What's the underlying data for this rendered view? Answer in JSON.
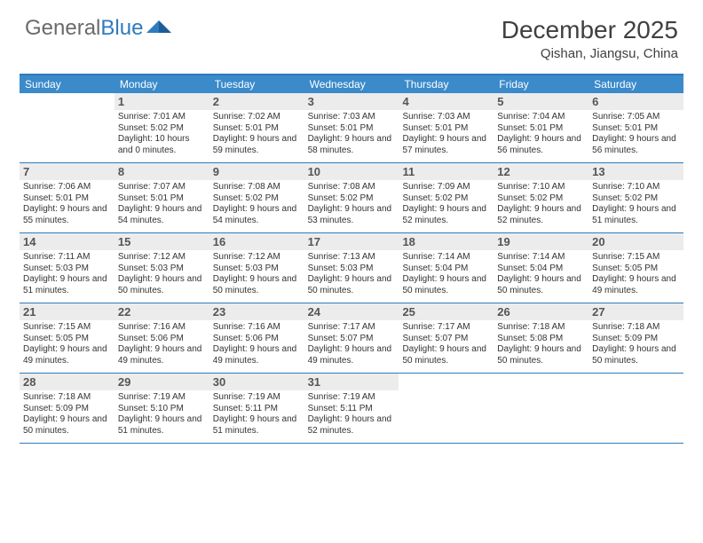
{
  "logo": {
    "text1": "General",
    "text2": "Blue"
  },
  "title": "December 2025",
  "location": "Qishan, Jiangsu, China",
  "colors": {
    "header_bg": "#3b8aca",
    "border": "#2f7bbf",
    "daynum_bg": "#ececec",
    "text": "#333333",
    "title_text": "#404040"
  },
  "day_names": [
    "Sunday",
    "Monday",
    "Tuesday",
    "Wednesday",
    "Thursday",
    "Friday",
    "Saturday"
  ],
  "weeks": [
    [
      {
        "day": "",
        "sunrise": "",
        "sunset": "",
        "daylight": ""
      },
      {
        "day": "1",
        "sunrise": "Sunrise: 7:01 AM",
        "sunset": "Sunset: 5:02 PM",
        "daylight": "Daylight: 10 hours and 0 minutes."
      },
      {
        "day": "2",
        "sunrise": "Sunrise: 7:02 AM",
        "sunset": "Sunset: 5:01 PM",
        "daylight": "Daylight: 9 hours and 59 minutes."
      },
      {
        "day": "3",
        "sunrise": "Sunrise: 7:03 AM",
        "sunset": "Sunset: 5:01 PM",
        "daylight": "Daylight: 9 hours and 58 minutes."
      },
      {
        "day": "4",
        "sunrise": "Sunrise: 7:03 AM",
        "sunset": "Sunset: 5:01 PM",
        "daylight": "Daylight: 9 hours and 57 minutes."
      },
      {
        "day": "5",
        "sunrise": "Sunrise: 7:04 AM",
        "sunset": "Sunset: 5:01 PM",
        "daylight": "Daylight: 9 hours and 56 minutes."
      },
      {
        "day": "6",
        "sunrise": "Sunrise: 7:05 AM",
        "sunset": "Sunset: 5:01 PM",
        "daylight": "Daylight: 9 hours and 56 minutes."
      }
    ],
    [
      {
        "day": "7",
        "sunrise": "Sunrise: 7:06 AM",
        "sunset": "Sunset: 5:01 PM",
        "daylight": "Daylight: 9 hours and 55 minutes."
      },
      {
        "day": "8",
        "sunrise": "Sunrise: 7:07 AM",
        "sunset": "Sunset: 5:01 PM",
        "daylight": "Daylight: 9 hours and 54 minutes."
      },
      {
        "day": "9",
        "sunrise": "Sunrise: 7:08 AM",
        "sunset": "Sunset: 5:02 PM",
        "daylight": "Daylight: 9 hours and 54 minutes."
      },
      {
        "day": "10",
        "sunrise": "Sunrise: 7:08 AM",
        "sunset": "Sunset: 5:02 PM",
        "daylight": "Daylight: 9 hours and 53 minutes."
      },
      {
        "day": "11",
        "sunrise": "Sunrise: 7:09 AM",
        "sunset": "Sunset: 5:02 PM",
        "daylight": "Daylight: 9 hours and 52 minutes."
      },
      {
        "day": "12",
        "sunrise": "Sunrise: 7:10 AM",
        "sunset": "Sunset: 5:02 PM",
        "daylight": "Daylight: 9 hours and 52 minutes."
      },
      {
        "day": "13",
        "sunrise": "Sunrise: 7:10 AM",
        "sunset": "Sunset: 5:02 PM",
        "daylight": "Daylight: 9 hours and 51 minutes."
      }
    ],
    [
      {
        "day": "14",
        "sunrise": "Sunrise: 7:11 AM",
        "sunset": "Sunset: 5:03 PM",
        "daylight": "Daylight: 9 hours and 51 minutes."
      },
      {
        "day": "15",
        "sunrise": "Sunrise: 7:12 AM",
        "sunset": "Sunset: 5:03 PM",
        "daylight": "Daylight: 9 hours and 50 minutes."
      },
      {
        "day": "16",
        "sunrise": "Sunrise: 7:12 AM",
        "sunset": "Sunset: 5:03 PM",
        "daylight": "Daylight: 9 hours and 50 minutes."
      },
      {
        "day": "17",
        "sunrise": "Sunrise: 7:13 AM",
        "sunset": "Sunset: 5:03 PM",
        "daylight": "Daylight: 9 hours and 50 minutes."
      },
      {
        "day": "18",
        "sunrise": "Sunrise: 7:14 AM",
        "sunset": "Sunset: 5:04 PM",
        "daylight": "Daylight: 9 hours and 50 minutes."
      },
      {
        "day": "19",
        "sunrise": "Sunrise: 7:14 AM",
        "sunset": "Sunset: 5:04 PM",
        "daylight": "Daylight: 9 hours and 50 minutes."
      },
      {
        "day": "20",
        "sunrise": "Sunrise: 7:15 AM",
        "sunset": "Sunset: 5:05 PM",
        "daylight": "Daylight: 9 hours and 49 minutes."
      }
    ],
    [
      {
        "day": "21",
        "sunrise": "Sunrise: 7:15 AM",
        "sunset": "Sunset: 5:05 PM",
        "daylight": "Daylight: 9 hours and 49 minutes."
      },
      {
        "day": "22",
        "sunrise": "Sunrise: 7:16 AM",
        "sunset": "Sunset: 5:06 PM",
        "daylight": "Daylight: 9 hours and 49 minutes."
      },
      {
        "day": "23",
        "sunrise": "Sunrise: 7:16 AM",
        "sunset": "Sunset: 5:06 PM",
        "daylight": "Daylight: 9 hours and 49 minutes."
      },
      {
        "day": "24",
        "sunrise": "Sunrise: 7:17 AM",
        "sunset": "Sunset: 5:07 PM",
        "daylight": "Daylight: 9 hours and 49 minutes."
      },
      {
        "day": "25",
        "sunrise": "Sunrise: 7:17 AM",
        "sunset": "Sunset: 5:07 PM",
        "daylight": "Daylight: 9 hours and 50 minutes."
      },
      {
        "day": "26",
        "sunrise": "Sunrise: 7:18 AM",
        "sunset": "Sunset: 5:08 PM",
        "daylight": "Daylight: 9 hours and 50 minutes."
      },
      {
        "day": "27",
        "sunrise": "Sunrise: 7:18 AM",
        "sunset": "Sunset: 5:09 PM",
        "daylight": "Daylight: 9 hours and 50 minutes."
      }
    ],
    [
      {
        "day": "28",
        "sunrise": "Sunrise: 7:18 AM",
        "sunset": "Sunset: 5:09 PM",
        "daylight": "Daylight: 9 hours and 50 minutes."
      },
      {
        "day": "29",
        "sunrise": "Sunrise: 7:19 AM",
        "sunset": "Sunset: 5:10 PM",
        "daylight": "Daylight: 9 hours and 51 minutes."
      },
      {
        "day": "30",
        "sunrise": "Sunrise: 7:19 AM",
        "sunset": "Sunset: 5:11 PM",
        "daylight": "Daylight: 9 hours and 51 minutes."
      },
      {
        "day": "31",
        "sunrise": "Sunrise: 7:19 AM",
        "sunset": "Sunset: 5:11 PM",
        "daylight": "Daylight: 9 hours and 52 minutes."
      },
      {
        "day": "",
        "sunrise": "",
        "sunset": "",
        "daylight": ""
      },
      {
        "day": "",
        "sunrise": "",
        "sunset": "",
        "daylight": ""
      },
      {
        "day": "",
        "sunrise": "",
        "sunset": "",
        "daylight": ""
      }
    ]
  ]
}
